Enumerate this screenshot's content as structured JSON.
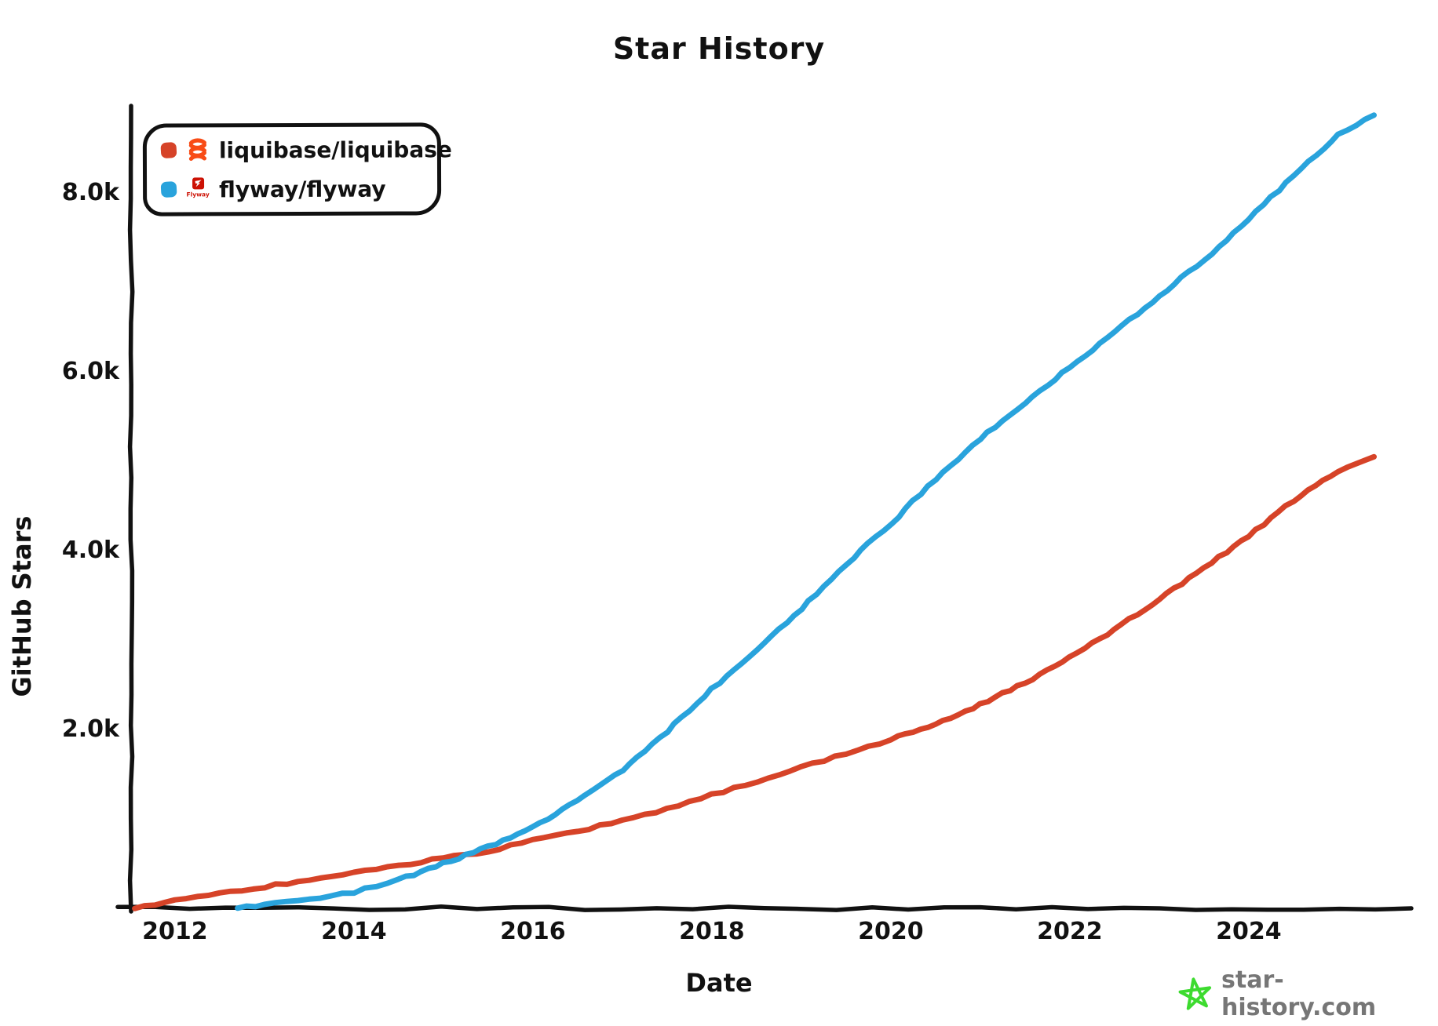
{
  "legend": {
    "items": [
      {
        "label": "liquibase/liquibase",
        "color": "#d64328",
        "icon": "liquibase-logo"
      },
      {
        "label": "flyway/flyway",
        "color": "#29a3dc",
        "icon": "flyway-logo",
        "icon_caption": "Flyway"
      }
    ]
  },
  "watermark": {
    "text": "star-history.com",
    "star_color": "#3ddb2f",
    "text_color": "#767676"
  },
  "chart_data": {
    "type": "line",
    "title": "Star History",
    "xlabel": "Date",
    "ylabel": "GitHub Stars",
    "x_ticks": [
      2012,
      2014,
      2016,
      2018,
      2020,
      2022,
      2024
    ],
    "x_tick_labels": [
      "2012",
      "2014",
      "2016",
      "2018",
      "2020",
      "2022",
      "2024"
    ],
    "y_ticks": [
      2000,
      4000,
      6000,
      8000
    ],
    "y_tick_labels": [
      "2.0k",
      "4.0k",
      "6.0k",
      "8.0k"
    ],
    "xlim": [
      2011.5,
      2025.8
    ],
    "ylim": [
      0,
      8950
    ],
    "grid": false,
    "legend_position": "top-left",
    "axis_color": "#111111",
    "series": [
      {
        "name": "liquibase/liquibase",
        "color": "#d64328",
        "x": [
          2011.55,
          2012,
          2012.5,
          2013,
          2013.5,
          2014,
          2014.5,
          2015,
          2015.5,
          2016,
          2016.5,
          2017,
          2017.5,
          2018,
          2018.5,
          2019,
          2019.5,
          2020,
          2020.5,
          2021,
          2021.5,
          2022,
          2022.5,
          2023,
          2023.5,
          2024,
          2024.5,
          2025,
          2025.4
        ],
        "y": [
          0,
          90,
          165,
          240,
          320,
          400,
          480,
          560,
          640,
          760,
          865,
          980,
          1110,
          1270,
          1420,
          1580,
          1730,
          1890,
          2060,
          2280,
          2520,
          2800,
          3120,
          3460,
          3810,
          4160,
          4560,
          4890,
          5050
        ]
      },
      {
        "name": "flyway/flyway",
        "color": "#29a3dc",
        "x": [
          2012.7,
          2013,
          2013.5,
          2014,
          2014.5,
          2015,
          2015.5,
          2016,
          2016.5,
          2017,
          2017.5,
          2018,
          2018.5,
          2019,
          2019.5,
          2020,
          2020.5,
          2021,
          2021.5,
          2022,
          2022.5,
          2023,
          2023.5,
          2024,
          2024.5,
          2025,
          2025.4
        ],
        "y": [
          0,
          40,
          100,
          180,
          320,
          500,
          690,
          900,
          1200,
          1550,
          1980,
          2450,
          2900,
          3350,
          3850,
          4300,
          4800,
          5250,
          5650,
          6050,
          6450,
          6850,
          7250,
          7700,
          8200,
          8650,
          8870
        ]
      }
    ]
  }
}
